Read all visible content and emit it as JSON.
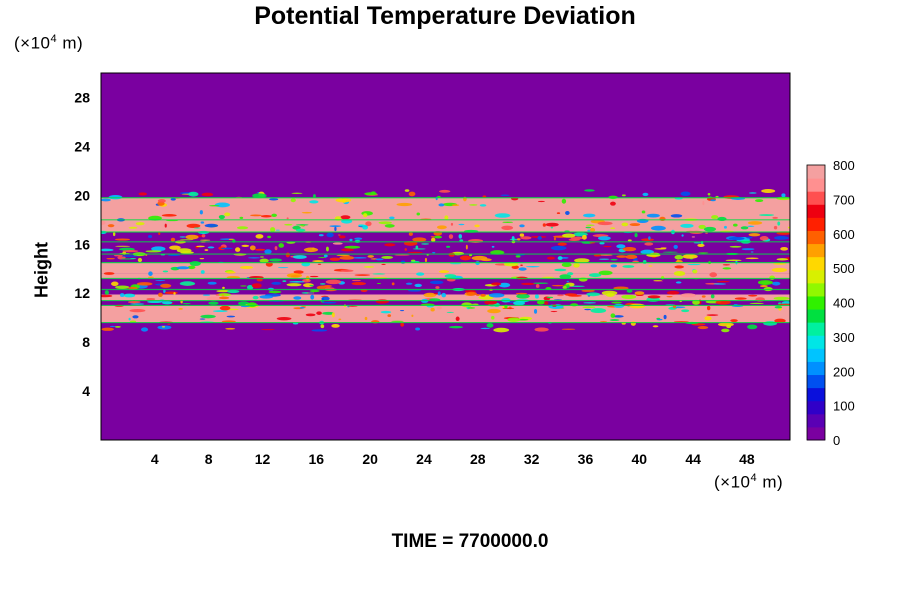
{
  "chart_data": {
    "type": "heatmap",
    "title": "Potential Temperature Deviation",
    "ylabel": "Height",
    "xlabel": "",
    "x_unit_prefix": "(×10",
    "x_unit_exp": "4",
    "x_unit_suffix": " m)",
    "y_unit_prefix": "(×10",
    "y_unit_exp": "4",
    "y_unit_suffix": " m)",
    "footer": "TIME = 7700000.0",
    "xlim": [
      0,
      51.2
    ],
    "ylim": [
      0,
      30
    ],
    "x_ticks": [
      4,
      8,
      12,
      16,
      20,
      24,
      28,
      32,
      36,
      40,
      44,
      48
    ],
    "y_ticks": [
      4,
      8,
      12,
      16,
      20,
      24,
      28
    ],
    "colorbar": {
      "min": 0,
      "max": 800,
      "ticks": [
        0,
        100,
        200,
        300,
        400,
        500,
        600,
        700,
        800
      ],
      "colors": [
        "#7a00a0",
        "#5a00b4",
        "#3000c8",
        "#0a10dc",
        "#0050f0",
        "#0090ff",
        "#00c4ff",
        "#00e6e6",
        "#00f0a0",
        "#00e040",
        "#30f000",
        "#90f800",
        "#d8f000",
        "#ffd800",
        "#ffa000",
        "#ff6000",
        "#ff2000",
        "#ee0010",
        "#ff5050",
        "#ff9090",
        "#f4a0a0"
      ]
    },
    "background_value": 0,
    "bands": [
      {
        "y0": 9.6,
        "y1": 11.0,
        "value": 800
      },
      {
        "y0": 11.0,
        "y1": 11.4,
        "value": 0
      },
      {
        "y0": 11.4,
        "y1": 11.9,
        "value": 800
      },
      {
        "y0": 11.9,
        "y1": 12.3,
        "value": 0
      },
      {
        "y0": 13.2,
        "y1": 13.6,
        "value": 800
      },
      {
        "y0": 13.6,
        "y1": 14.5,
        "value": 800
      },
      {
        "y0": 14.5,
        "y1": 15.0,
        "value": 0
      },
      {
        "y0": 17.0,
        "y1": 19.8,
        "value": 800
      }
    ]
  }
}
